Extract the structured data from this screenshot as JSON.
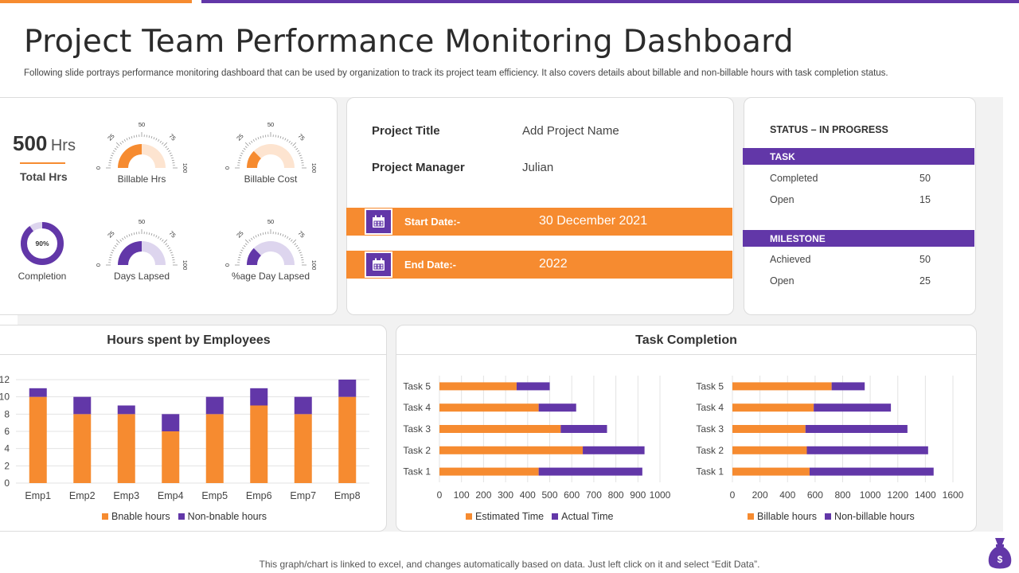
{
  "header": {
    "title": "Project Team Performance Monitoring Dashboard",
    "subtitle": "Following slide portrays performance monitoring dashboard that can be used by organization to track its project team efficiency. It also covers details about billable and non-billable hours with task completion status."
  },
  "summary": {
    "total_value": "500",
    "total_unit": "Hrs",
    "total_label": "Total Hrs",
    "completion_percent_text": "90%",
    "completion_percent": 90,
    "completion_label": "Completion",
    "gauges": [
      {
        "label": "Billable Hrs",
        "value": 50,
        "ticks": [
          "0",
          "25",
          "50",
          "75",
          "100"
        ],
        "style": "orange-solid"
      },
      {
        "label": "Billable Cost",
        "value": 25,
        "ticks": [
          "0",
          "25",
          "50",
          "75",
          "100"
        ],
        "style": "orange-light"
      },
      {
        "label": "Days Lapsed",
        "value": 50,
        "ticks": [
          "0",
          "25",
          "50",
          "75",
          "100"
        ],
        "style": "purple-solid"
      },
      {
        "label": "%age Day Lapsed",
        "value": 25,
        "ticks": [
          "0",
          "25",
          "50",
          "75",
          "100"
        ],
        "style": "purple-light"
      }
    ]
  },
  "project": {
    "title_label": "Project Title",
    "title_value": "Add Project Name",
    "manager_label": "Project Manager",
    "manager_value": "Julian",
    "start_label": "Start Date:-",
    "start_value": "30 December 2021",
    "end_label": "End Date:-",
    "end_value": "2022",
    "calendar_icon": "calendar-icon"
  },
  "status": {
    "heading": "STATUS – IN PROGRESS",
    "task_label": "TASK",
    "task_rows": [
      {
        "label": "Completed",
        "value": "50"
      },
      {
        "label": "Open",
        "value": "15"
      }
    ],
    "milestone_label": "MILESTONE",
    "milestone_rows": [
      {
        "label": "Achieved",
        "value": "50"
      },
      {
        "label": "Open",
        "value": "25"
      }
    ]
  },
  "colors": {
    "orange": "#f68b30",
    "purple": "#6237a8",
    "light_orange": "#fde4d0",
    "light_purple": "#ddd5ee"
  },
  "hours_chart": {
    "title": "Hours spent by Employees"
  },
  "task_chart": {
    "title": "Task Completion"
  },
  "chart_data": [
    {
      "type": "bar",
      "stacked": true,
      "title": "Hours spent by Employees",
      "categories": [
        "Emp1",
        "Emp2",
        "Emp3",
        "Emp4",
        "Emp5",
        "Emp6",
        "Emp7",
        "Emp8"
      ],
      "series": [
        {
          "name": "Bnable hours",
          "color": "#f68b30",
          "values": [
            10,
            8,
            8,
            6,
            8,
            9,
            8,
            10
          ]
        },
        {
          "name": "Non-bnable hours",
          "color": "#6237a8",
          "values": [
            1,
            2,
            1,
            2,
            2,
            2,
            2,
            2
          ]
        }
      ],
      "yticks": [
        "0",
        "2",
        "4",
        "6",
        "8",
        "10",
        "12"
      ],
      "ylim": [
        0,
        12
      ],
      "legend": "bottom",
      "grid": true
    },
    {
      "type": "bar",
      "orientation": "horizontal",
      "stacked": true,
      "categories": [
        "Task 1",
        "Task 2",
        "Task 3",
        "Task 4",
        "Task 5"
      ],
      "series": [
        {
          "name": "Estimated Time",
          "color": "#f68b30",
          "values": [
            450,
            650,
            550,
            450,
            350
          ]
        },
        {
          "name": "Actual Time",
          "color": "#6237a8",
          "values": [
            470,
            280,
            210,
            170,
            150
          ]
        }
      ],
      "xticks": [
        "0",
        "100",
        "200",
        "300",
        "400",
        "500",
        "600",
        "700",
        "800",
        "900",
        "1000"
      ],
      "xlim": [
        0,
        1000
      ],
      "legend": "bottom",
      "grid": true
    },
    {
      "type": "bar",
      "orientation": "horizontal",
      "stacked": true,
      "categories": [
        "Task 1",
        "Task 2",
        "Task 3",
        "Task 4",
        "Task 5"
      ],
      "series": [
        {
          "name": "Billable hours",
          "color": "#f68b30",
          "values": [
            560,
            540,
            530,
            590,
            720
          ]
        },
        {
          "name": "Non-billable hours",
          "color": "#6237a8",
          "values": [
            900,
            880,
            740,
            560,
            240
          ]
        }
      ],
      "xticks": [
        "0",
        "200",
        "400",
        "600",
        "800",
        "1000",
        "1200",
        "1400",
        "1600"
      ],
      "xlim": [
        0,
        1600
      ],
      "legend": "bottom",
      "grid": true
    }
  ],
  "footer": {
    "note": "This graph/chart is linked to excel,  and changes automatically based on data. Just left click on it and select “Edit Data”."
  }
}
